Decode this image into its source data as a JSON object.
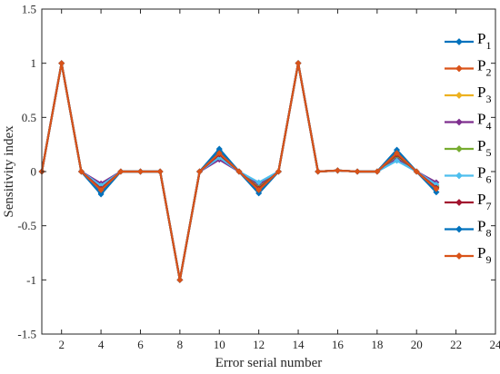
{
  "chart_data": {
    "type": "line",
    "title": "",
    "xlabel": "Error serial number",
    "ylabel": "Sensitivity index",
    "xlim": [
      1,
      24
    ],
    "ylim": [
      -1.5,
      1.5
    ],
    "xticks": [
      2,
      4,
      6,
      8,
      10,
      12,
      14,
      16,
      18,
      20,
      22,
      24
    ],
    "yticks": [
      -1.5,
      -1,
      -0.5,
      0,
      0.5,
      1,
      1.5
    ],
    "xtick_labels": [
      "2",
      "4",
      "6",
      "8",
      "10",
      "12",
      "14",
      "16",
      "18",
      "20",
      "22",
      "24"
    ],
    "ytick_labels": [
      "-1.5",
      "-1",
      "-0.5",
      "0",
      "0.5",
      "1",
      "1.5"
    ],
    "grid": false,
    "legend_position": "right",
    "x": [
      1,
      2,
      3,
      4,
      5,
      6,
      7,
      8,
      9,
      10,
      11,
      12,
      13,
      14,
      15,
      16,
      17,
      18,
      19,
      20,
      21
    ],
    "series": [
      {
        "name": "P",
        "subscript": "1",
        "color": "#0072BD",
        "values": [
          0,
          1,
          0,
          -0.21,
          0,
          0,
          0,
          -1,
          0,
          0.21,
          0,
          -0.2,
          0,
          1,
          0,
          0.01,
          0,
          0,
          0.2,
          0,
          -0.19
        ]
      },
      {
        "name": "P",
        "subscript": "2",
        "color": "#D95319",
        "values": [
          0,
          1,
          0,
          -0.16,
          0,
          0,
          0,
          -1,
          0,
          0.16,
          0,
          -0.16,
          0,
          1,
          0,
          0.01,
          0,
          0,
          0.16,
          0,
          -0.15
        ]
      },
      {
        "name": "P",
        "subscript": "3",
        "color": "#EDB120",
        "values": [
          0,
          1,
          0,
          -0.14,
          0,
          0,
          0,
          -1,
          0,
          0.14,
          0,
          -0.14,
          0,
          1,
          0,
          0.01,
          0,
          0,
          0.14,
          0,
          -0.13
        ]
      },
      {
        "name": "P",
        "subscript": "4",
        "color": "#7E2F8E",
        "values": [
          0,
          1,
          0,
          -0.11,
          0,
          0,
          0,
          -1,
          0,
          0.11,
          0,
          -0.12,
          0,
          1,
          0,
          0.01,
          0,
          0,
          0.12,
          0,
          -0.1
        ]
      },
      {
        "name": "P",
        "subscript": "5",
        "color": "#77AC30",
        "values": [
          0,
          1,
          0,
          -0.15,
          0,
          0,
          0,
          -1,
          0,
          0.15,
          0,
          -0.15,
          0,
          1,
          0,
          0.01,
          0,
          0,
          0.15,
          0,
          -0.14
        ]
      },
      {
        "name": "P",
        "subscript": "6",
        "color": "#4DBEEE",
        "values": [
          0,
          1,
          0,
          -0.13,
          0,
          0,
          0,
          -1,
          0,
          0.13,
          0,
          -0.1,
          0,
          1,
          0,
          0.01,
          0,
          0,
          0.1,
          0,
          -0.12
        ]
      },
      {
        "name": "P",
        "subscript": "7",
        "color": "#A2142F",
        "values": [
          0,
          1,
          0,
          -0.16,
          0,
          0,
          0,
          -1,
          0,
          0.16,
          0,
          -0.16,
          0,
          1,
          0,
          0.01,
          0,
          0,
          0.16,
          0,
          -0.15
        ]
      },
      {
        "name": "P",
        "subscript": "8",
        "color": "#0072BD",
        "values": [
          0,
          1,
          0,
          -0.2,
          0,
          0,
          0,
          -1,
          0,
          0.2,
          0,
          -0.2,
          0,
          1,
          0,
          0.01,
          0,
          0,
          0.2,
          0,
          -0.19
        ]
      },
      {
        "name": "P",
        "subscript": "9",
        "color": "#D95319",
        "values": [
          0,
          1,
          0,
          -0.17,
          0,
          0,
          0,
          -1,
          0,
          0.17,
          0,
          -0.17,
          0,
          1,
          0,
          0.01,
          0,
          0,
          0.17,
          0,
          -0.16
        ]
      }
    ]
  }
}
